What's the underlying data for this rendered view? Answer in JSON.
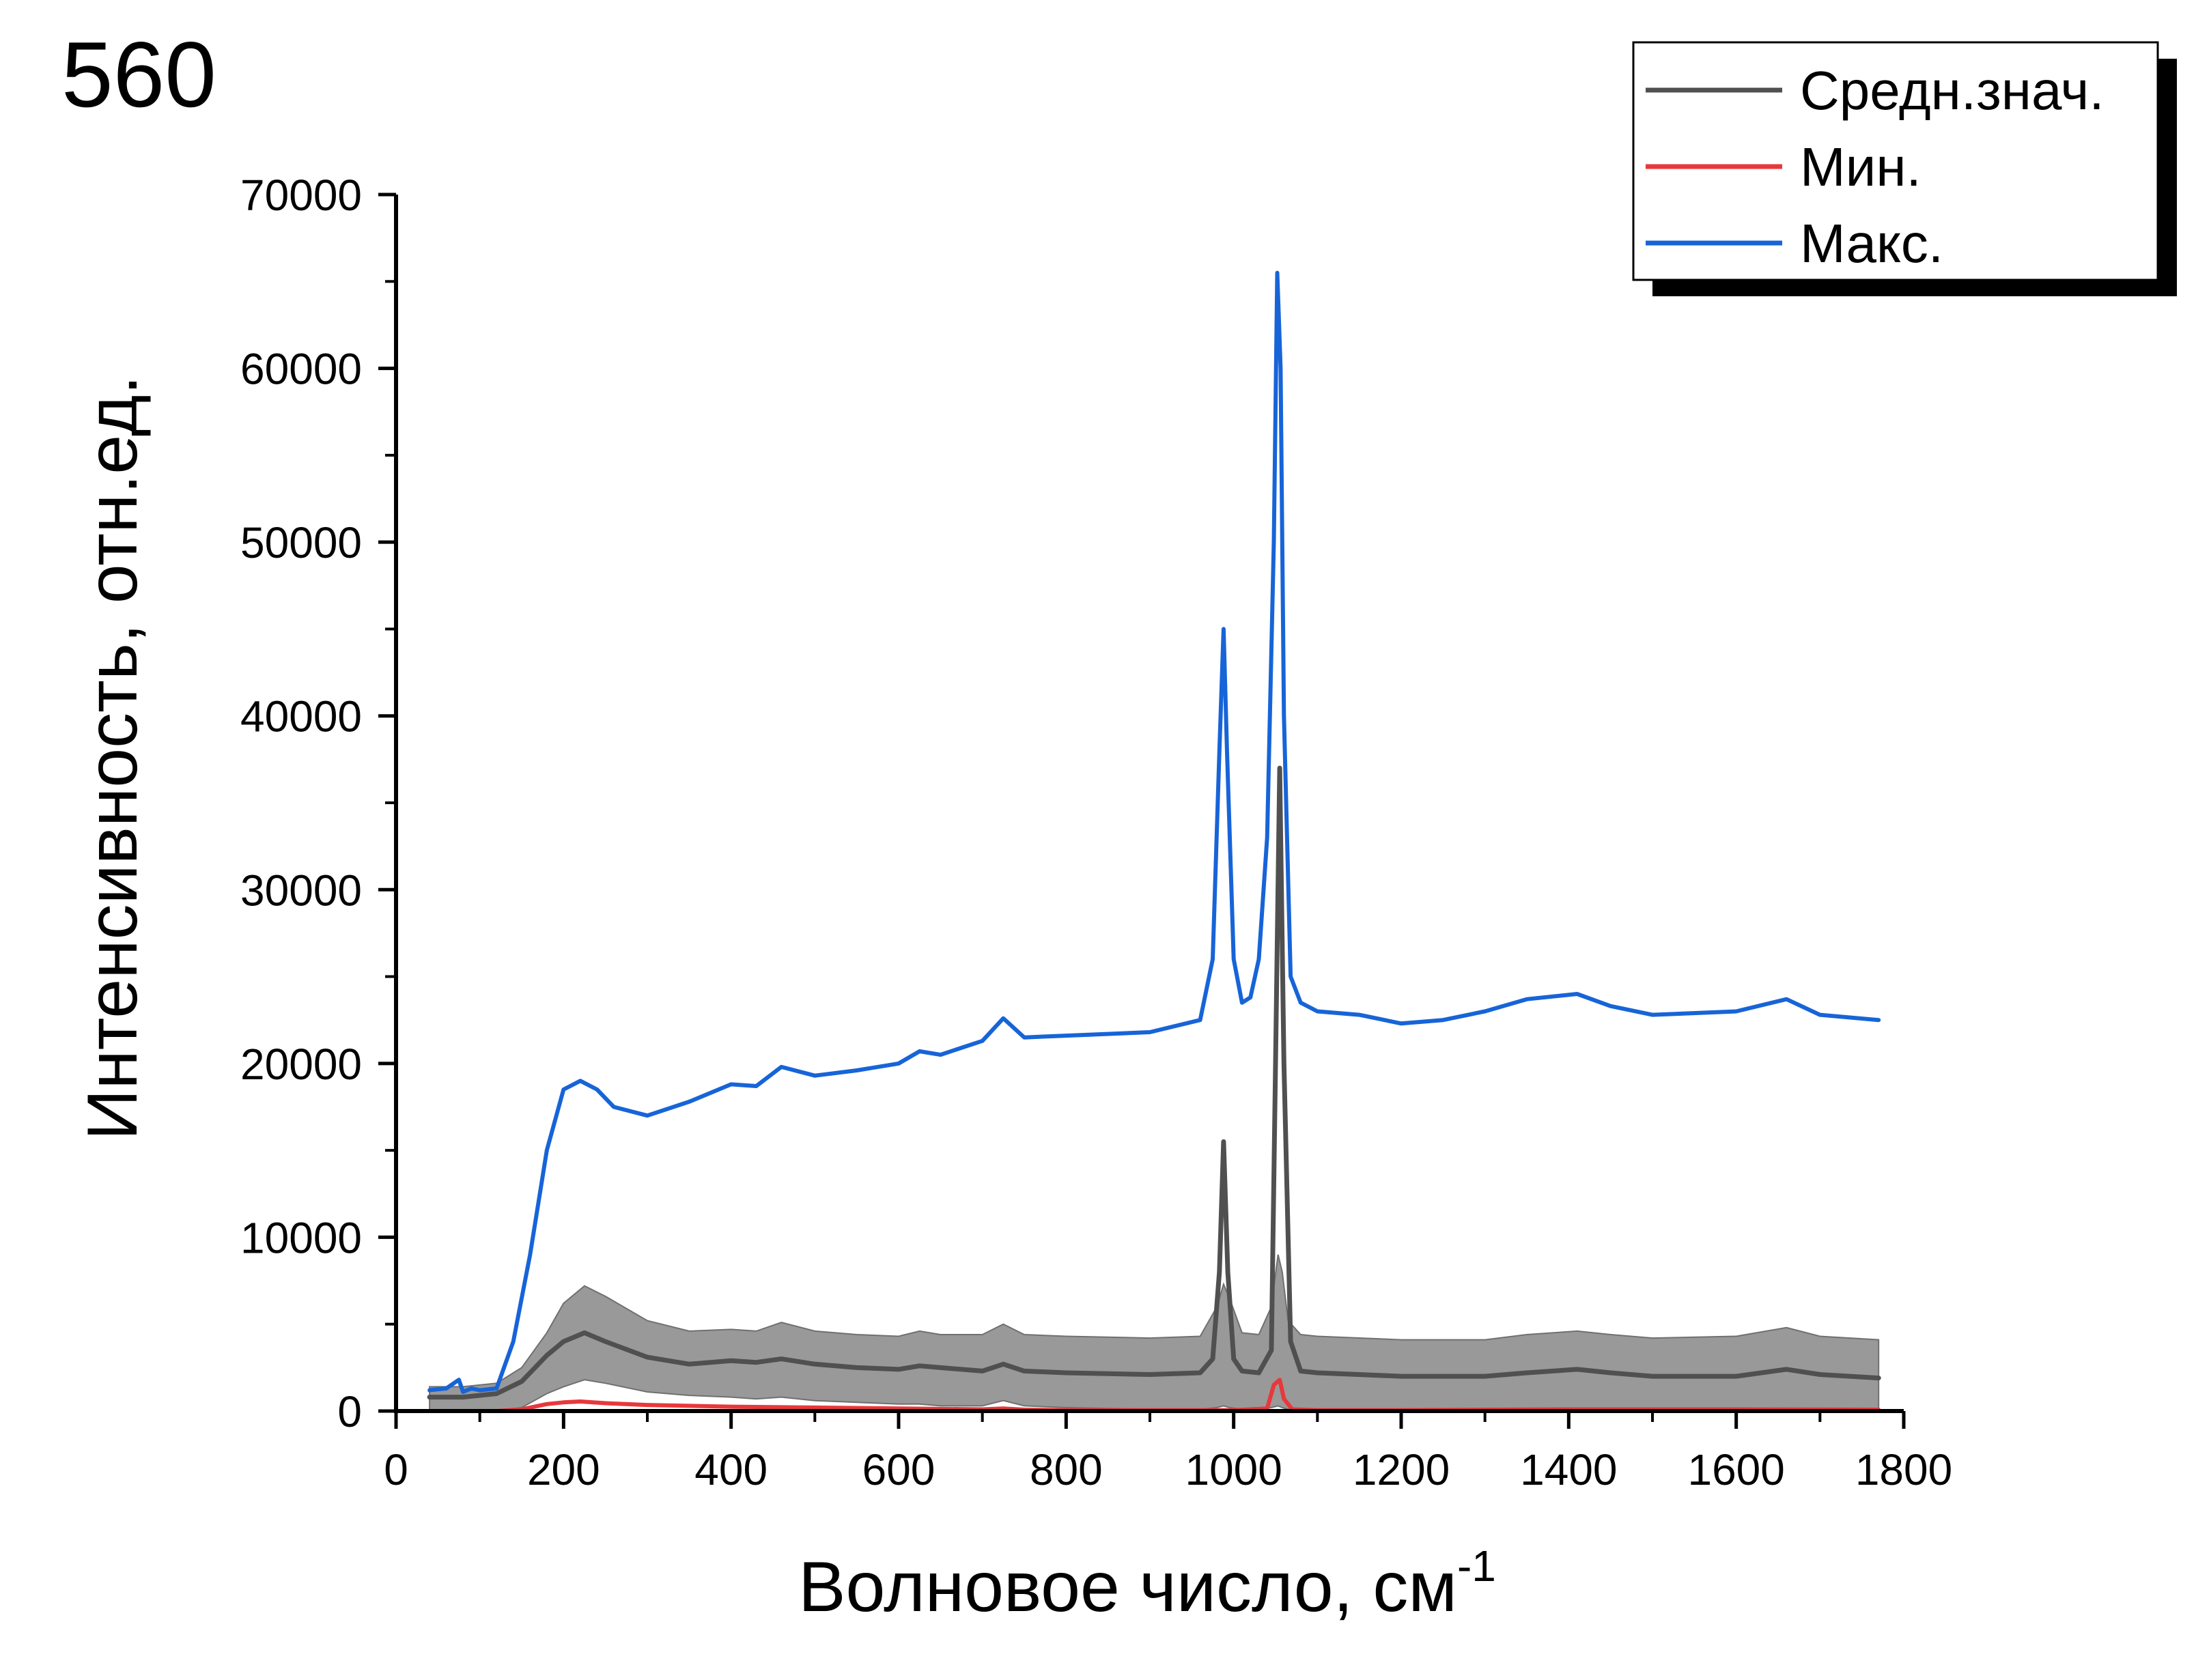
{
  "panel_label": "560",
  "chart_data": {
    "type": "line",
    "xlabel": "Волновое число, см",
    "xlabel_sup": "-1",
    "ylabel": "Интенсивность, отн.ед.",
    "xlim": [
      0,
      1800
    ],
    "ylim": [
      0,
      70000
    ],
    "x_ticks": [
      0,
      200,
      400,
      600,
      800,
      1000,
      1200,
      1400,
      1600,
      1800
    ],
    "y_ticks": [
      0,
      10000,
      20000,
      30000,
      40000,
      50000,
      60000,
      70000
    ],
    "legend_position": "top-right",
    "band": {
      "color": "#999999",
      "x": [
        40,
        80,
        120,
        150,
        180,
        200,
        225,
        250,
        300,
        350,
        400,
        430,
        460,
        500,
        550,
        600,
        625,
        650,
        700,
        725,
        750,
        800,
        900,
        960,
        980,
        988,
        995,
        1010,
        1030,
        1045,
        1053,
        1058,
        1065,
        1080,
        1100,
        1200,
        1300,
        1350,
        1410,
        1450,
        1500,
        1600,
        1660,
        1700,
        1770
      ],
      "upper": [
        1400,
        1400,
        1600,
        2500,
        4500,
        6200,
        7200,
        6600,
        5200,
        4600,
        4700,
        4600,
        5100,
        4600,
        4400,
        4300,
        4600,
        4400,
        4400,
        5000,
        4400,
        4300,
        4200,
        4300,
        6000,
        7300,
        6500,
        4500,
        4400,
        6000,
        9000,
        8000,
        5200,
        4400,
        4300,
        4100,
        4100,
        4400,
        4600,
        4400,
        4200,
        4300,
        4800,
        4300,
        4100
      ],
      "lower": [
        0,
        0,
        0,
        200,
        1000,
        1400,
        1800,
        1600,
        1100,
        900,
        800,
        700,
        800,
        600,
        500,
        400,
        400,
        300,
        300,
        600,
        300,
        200,
        100,
        100,
        200,
        300,
        200,
        100,
        100,
        200,
        300,
        200,
        100,
        100,
        100,
        50,
        50,
        50,
        50,
        50,
        50,
        50,
        50,
        50,
        50
      ]
    },
    "series": [
      {
        "name": "Средн.знач.",
        "color": "#505050",
        "x": [
          40,
          80,
          120,
          150,
          180,
          200,
          225,
          250,
          300,
          350,
          400,
          430,
          460,
          500,
          550,
          600,
          625,
          650,
          700,
          725,
          750,
          800,
          900,
          960,
          975,
          983,
          988,
          993,
          1000,
          1010,
          1030,
          1045,
          1050,
          1055,
          1060,
          1068,
          1080,
          1100,
          1200,
          1300,
          1350,
          1410,
          1450,
          1500,
          1600,
          1660,
          1700,
          1770
        ],
        "y": [
          800,
          800,
          1000,
          1700,
          3200,
          4000,
          4500,
          4000,
          3100,
          2700,
          2900,
          2800,
          3000,
          2700,
          2500,
          2400,
          2600,
          2500,
          2300,
          2700,
          2300,
          2200,
          2100,
          2200,
          3000,
          8000,
          15500,
          8000,
          3000,
          2300,
          2200,
          3500,
          20000,
          37000,
          20000,
          4000,
          2300,
          2200,
          2000,
          2000,
          2200,
          2400,
          2200,
          2000,
          2000,
          2400,
          2100,
          1900
        ]
      },
      {
        "name": "Мин.",
        "color": "#e8383c",
        "x": [
          40,
          120,
          150,
          180,
          200,
          220,
          250,
          300,
          400,
          500,
          600,
          700,
          725,
          750,
          800,
          900,
          1000,
          1040,
          1048,
          1055,
          1060,
          1070,
          1100,
          1200,
          1400,
          1600,
          1770
        ],
        "y": [
          0,
          0,
          100,
          400,
          500,
          550,
          450,
          350,
          250,
          200,
          150,
          100,
          150,
          80,
          50,
          50,
          50,
          150,
          1500,
          1800,
          700,
          100,
          50,
          50,
          100,
          100,
          80
        ]
      },
      {
        "name": "Макс.",
        "color": "#1764d8",
        "x": [
          40,
          60,
          75,
          80,
          90,
          100,
          120,
          140,
          160,
          180,
          200,
          220,
          240,
          260,
          300,
          350,
          400,
          430,
          460,
          500,
          550,
          600,
          625,
          650,
          700,
          725,
          750,
          800,
          900,
          960,
          975,
          983,
          988,
          992,
          1000,
          1010,
          1020,
          1030,
          1040,
          1048,
          1052,
          1056,
          1060,
          1068,
          1080,
          1100,
          1150,
          1200,
          1250,
          1300,
          1350,
          1410,
          1450,
          1500,
          1600,
          1660,
          1700,
          1770
        ],
        "y": [
          1200,
          1300,
          1800,
          1100,
          1300,
          1200,
          1300,
          4000,
          9000,
          15000,
          18500,
          19000,
          18500,
          17500,
          17000,
          17800,
          18800,
          18700,
          19800,
          19300,
          19600,
          20000,
          20700,
          20500,
          21300,
          22600,
          21500,
          21600,
          21800,
          22500,
          26000,
          38000,
          45000,
          38000,
          26000,
          23500,
          23800,
          26000,
          33000,
          50000,
          65500,
          60000,
          40000,
          25000,
          23500,
          23000,
          22800,
          22300,
          22500,
          23000,
          23700,
          24000,
          23300,
          22800,
          23000,
          23700,
          22800,
          22500
        ]
      }
    ]
  }
}
